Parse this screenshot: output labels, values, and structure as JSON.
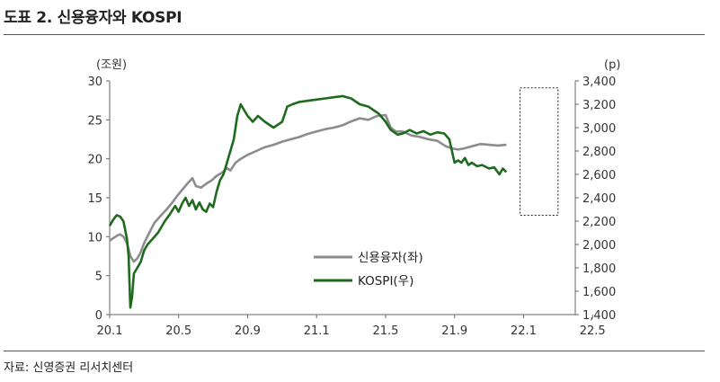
{
  "header": {
    "title": "도표 2. 신용융자와 KOSPI"
  },
  "footer": {
    "source": "자료: 신영증권 리서치센터"
  },
  "chart_data": {
    "type": "line",
    "title": "",
    "left_unit": "(조원)",
    "right_unit": "(p)",
    "x_ticks": [
      "20.1",
      "20.5",
      "20.9",
      "21.1",
      "21.5",
      "21.9",
      "22.1",
      "22.5"
    ],
    "y_left": {
      "min": 0,
      "max": 30,
      "ticks": [
        0,
        5,
        10,
        15,
        20,
        25,
        30
      ]
    },
    "y_right": {
      "min": 1400,
      "max": 3400,
      "ticks": [
        "1,400",
        "1,600",
        "1,800",
        "2,000",
        "2,200",
        "2,400",
        "2,600",
        "2,800",
        "3,000",
        "3,200",
        "3,400"
      ]
    },
    "legend_position": "center-right",
    "highlight_box": {
      "x_from": "22.1",
      "x_to": "22.7",
      "y_right_from": 2250,
      "y_right_to": 3340
    },
    "series": [
      {
        "name": "신용융자(좌)",
        "axis": "left",
        "color": "#8c8c8c",
        "points": [
          [
            0.0,
            9.5
          ],
          [
            0.2,
            9.8
          ],
          [
            0.4,
            10.1
          ],
          [
            0.6,
            10.3
          ],
          [
            0.8,
            10.0
          ],
          [
            1.0,
            9.2
          ],
          [
            1.2,
            7.5
          ],
          [
            1.4,
            6.8
          ],
          [
            1.6,
            7.2
          ],
          [
            1.8,
            8.0
          ],
          [
            2.0,
            9.2
          ],
          [
            2.3,
            10.5
          ],
          [
            2.6,
            11.8
          ],
          [
            3.0,
            12.8
          ],
          [
            3.3,
            13.5
          ],
          [
            3.6,
            14.3
          ],
          [
            3.9,
            15.2
          ],
          [
            4.2,
            16.0
          ],
          [
            4.5,
            16.8
          ],
          [
            4.8,
            17.5
          ],
          [
            5.0,
            16.5
          ],
          [
            5.3,
            16.3
          ],
          [
            5.6,
            16.8
          ],
          [
            5.9,
            17.2
          ],
          [
            6.2,
            17.8
          ],
          [
            6.5,
            18.2
          ],
          [
            6.8,
            18.8
          ],
          [
            7.0,
            18.5
          ],
          [
            7.3,
            19.5
          ],
          [
            7.6,
            20.0
          ],
          [
            8.0,
            20.5
          ],
          [
            8.5,
            21.0
          ],
          [
            9.0,
            21.5
          ],
          [
            9.5,
            21.8
          ],
          [
            10.0,
            22.2
          ],
          [
            10.5,
            22.5
          ],
          [
            11.0,
            22.8
          ],
          [
            11.5,
            23.2
          ],
          [
            12.0,
            23.5
          ],
          [
            12.5,
            23.8
          ],
          [
            13.0,
            24.0
          ],
          [
            13.5,
            24.3
          ],
          [
            14.0,
            24.8
          ],
          [
            14.5,
            25.2
          ],
          [
            15.0,
            25.0
          ],
          [
            15.5,
            25.5
          ],
          [
            16.0,
            25.6
          ],
          [
            16.3,
            24.0
          ],
          [
            16.6,
            23.5
          ],
          [
            17.0,
            23.5
          ],
          [
            17.5,
            23.0
          ],
          [
            18.0,
            22.8
          ],
          [
            18.5,
            22.5
          ],
          [
            19.0,
            22.3
          ],
          [
            19.5,
            21.6
          ],
          [
            19.9,
            21.3
          ],
          [
            20.2,
            21.2
          ],
          [
            20.5,
            21.3
          ],
          [
            21.0,
            21.6
          ],
          [
            21.5,
            21.9
          ],
          [
            22.0,
            21.8
          ],
          [
            22.5,
            21.7
          ],
          [
            23.0,
            21.8
          ]
        ]
      },
      {
        "name": "KOSPI(우)",
        "axis": "right",
        "color": "#1e6b1e",
        "points": [
          [
            0.0,
            2160
          ],
          [
            0.2,
            2210
          ],
          [
            0.4,
            2250
          ],
          [
            0.6,
            2240
          ],
          [
            0.8,
            2200
          ],
          [
            1.0,
            2050
          ],
          [
            1.1,
            1900
          ],
          [
            1.2,
            1460
          ],
          [
            1.3,
            1550
          ],
          [
            1.4,
            1750
          ],
          [
            1.6,
            1800
          ],
          [
            1.8,
            1850
          ],
          [
            2.0,
            1950
          ],
          [
            2.2,
            2000
          ],
          [
            2.5,
            2050
          ],
          [
            2.8,
            2100
          ],
          [
            3.0,
            2150
          ],
          [
            3.2,
            2200
          ],
          [
            3.5,
            2260
          ],
          [
            3.8,
            2330
          ],
          [
            4.0,
            2280
          ],
          [
            4.2,
            2350
          ],
          [
            4.4,
            2400
          ],
          [
            4.6,
            2330
          ],
          [
            4.8,
            2380
          ],
          [
            5.0,
            2300
          ],
          [
            5.2,
            2360
          ],
          [
            5.4,
            2300
          ],
          [
            5.6,
            2280
          ],
          [
            5.8,
            2350
          ],
          [
            6.0,
            2320
          ],
          [
            6.2,
            2450
          ],
          [
            6.4,
            2550
          ],
          [
            6.6,
            2600
          ],
          [
            6.8,
            2700
          ],
          [
            7.0,
            2800
          ],
          [
            7.2,
            2900
          ],
          [
            7.4,
            3100
          ],
          [
            7.6,
            3200
          ],
          [
            7.8,
            3150
          ],
          [
            8.0,
            3100
          ],
          [
            8.3,
            3050
          ],
          [
            8.6,
            3100
          ],
          [
            9.0,
            3050
          ],
          [
            9.5,
            3000
          ],
          [
            10.0,
            3050
          ],
          [
            10.3,
            3180
          ],
          [
            10.6,
            3200
          ],
          [
            11.0,
            3220
          ],
          [
            11.5,
            3230
          ],
          [
            12.0,
            3240
          ],
          [
            12.5,
            3250
          ],
          [
            13.0,
            3260
          ],
          [
            13.5,
            3270
          ],
          [
            14.0,
            3250
          ],
          [
            14.5,
            3200
          ],
          [
            15.0,
            3180
          ],
          [
            15.3,
            3150
          ],
          [
            15.6,
            3120
          ],
          [
            16.0,
            3050
          ],
          [
            16.3,
            2980
          ],
          [
            16.7,
            2940
          ],
          [
            17.0,
            2950
          ],
          [
            17.4,
            2980
          ],
          [
            17.8,
            2950
          ],
          [
            18.2,
            2970
          ],
          [
            18.6,
            2940
          ],
          [
            19.0,
            2960
          ],
          [
            19.4,
            2950
          ],
          [
            19.7,
            2900
          ],
          [
            20.0,
            2700
          ],
          [
            20.2,
            2720
          ],
          [
            20.4,
            2700
          ],
          [
            20.6,
            2740
          ],
          [
            20.8,
            2680
          ],
          [
            21.0,
            2700
          ],
          [
            21.3,
            2670
          ],
          [
            21.6,
            2680
          ],
          [
            22.0,
            2650
          ],
          [
            22.3,
            2660
          ],
          [
            22.6,
            2600
          ],
          [
            22.8,
            2650
          ],
          [
            23.0,
            2620
          ]
        ]
      }
    ]
  }
}
